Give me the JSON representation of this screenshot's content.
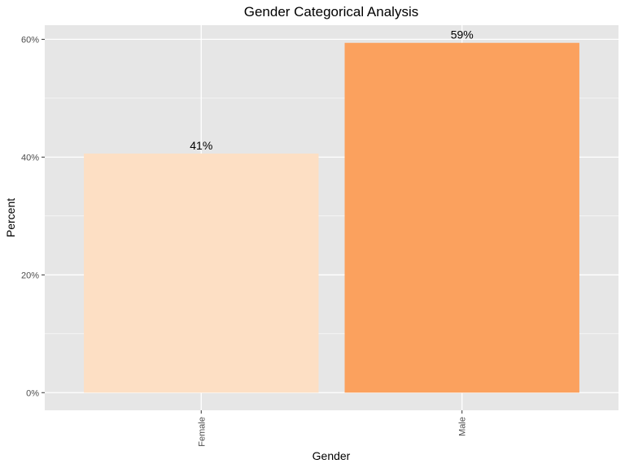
{
  "chart_data": {
    "type": "bar",
    "title": "Gender Categorical Analysis",
    "xlabel": "Gender",
    "ylabel": "Percent",
    "categories": [
      "Female",
      "Male"
    ],
    "values": [
      40.6,
      59.4
    ],
    "data_labels": [
      "41%",
      "59%"
    ],
    "colors": [
      "#FDDFC4",
      "#FBA15E"
    ],
    "ylim": [
      -3.0,
      62.4
    ],
    "yticks": [
      0,
      20,
      40,
      60
    ],
    "ytick_labels": [
      "0%",
      "20%",
      "40%",
      "60%"
    ],
    "grid": true,
    "panel_background": "#E6E6E6",
    "grid_color": "#FFFFFF",
    "legend": "none"
  }
}
